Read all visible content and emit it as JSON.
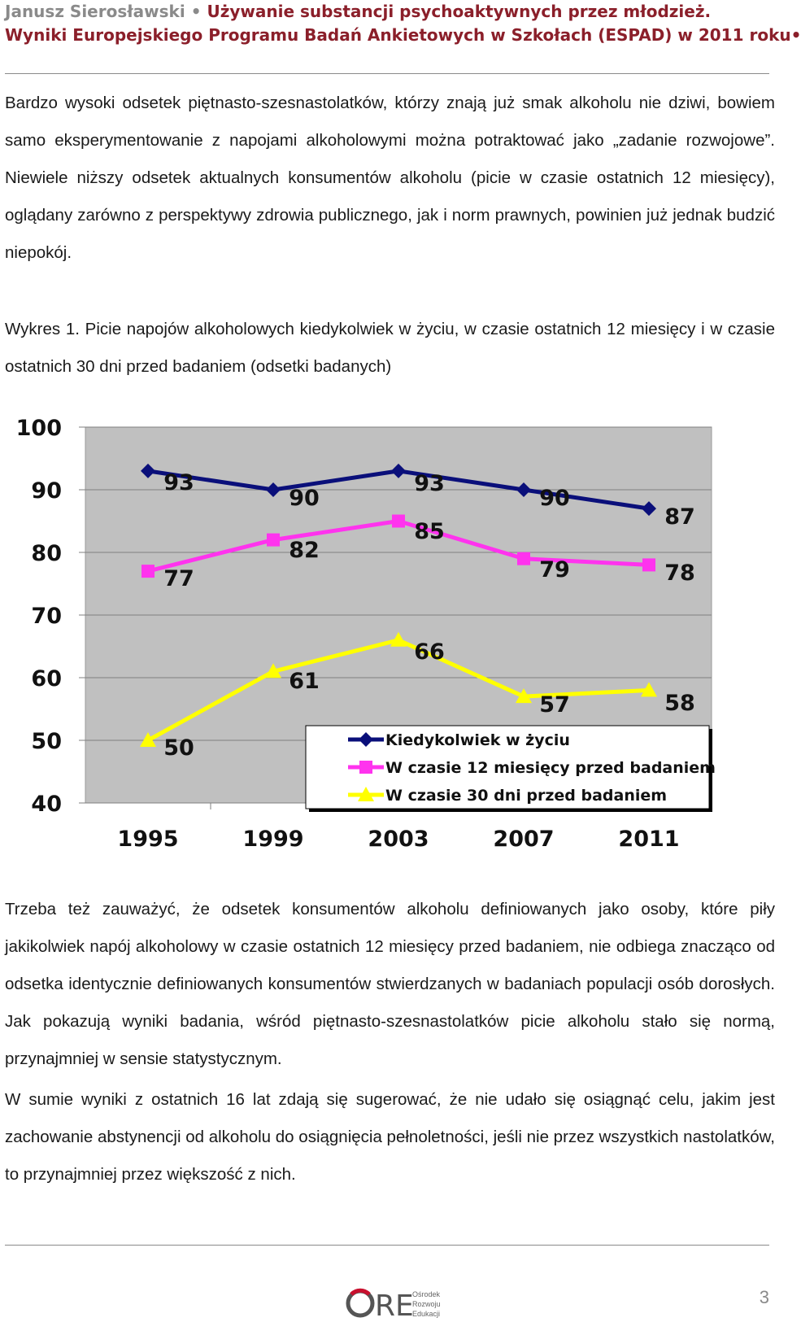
{
  "header": {
    "author": "Janusz Sierosławski",
    "separator": "•",
    "title_part1": "Używanie substancji psychoaktywnych przez młodzież.",
    "title_part2": "Wyniki Europejskiego Programu Badań Ankietowych w Szkołach (ESPAD) w 2011 roku•"
  },
  "paragraphs": [
    "Bardzo wysoki odsetek piętnasto-szesnastolatków, którzy znają już smak alkoholu nie dziwi, bowiem samo eksperymentowanie z napojami alkoholowymi można potraktować jako „zadanie rozwojowe”. Niewiele niższy odsetek aktualnych konsumentów alkoholu (picie w czasie ostatnich 12 miesięcy), oglądany zarówno z perspektywy zdrowia publicznego, jak i norm prawnych, powinien już jednak budzić niepokój.",
    "Trzeba też zauważyć, że odsetek konsumentów alkoholu definiowanych jako osoby, które piły jakikolwiek napój alkoholowy w czasie ostatnich 12 miesięcy przed badaniem, nie odbiega znacząco od odsetka identycznie definiowanych konsumentów stwierdzanych w badaniach populacji osób dorosłych. Jak pokazują wyniki badania, wśród piętnasto-szesnastolatków picie alkoholu stało się normą, przynajmniej w sensie statystycznym.",
    "W sumie wyniki z ostatnich 16 lat zdają się sugerować, że nie udało się osiągnąć celu, jakim jest zachowanie abstynencji od alkoholu do osiągnięcia pełnoletności, jeśli nie przez wszystkich nastolatków, to przynajmniej przez większość z nich."
  ],
  "caption": "Wykres 1. Picie napojów alkoholowych kiedykolwiek w życiu, w czasie ostatnich 12 miesięcy i w czasie ostatnich 30 dni przed badaniem (odsetki badanych)",
  "chart_data": {
    "type": "line",
    "x": [
      "1995",
      "1999",
      "2003",
      "2007",
      "2011"
    ],
    "ylim": [
      40,
      100
    ],
    "yticks": [
      "40",
      "50",
      "60",
      "70",
      "80",
      "90",
      "100"
    ],
    "grid": "horizontal",
    "legend_position": "bottom-right",
    "plot_background": "#c0c0c0",
    "series": [
      {
        "name": "Kiedykolwiek w życiu",
        "values": [
          93,
          90,
          93,
          90,
          87
        ],
        "color": "#0a0f7a",
        "marker": "diamond"
      },
      {
        "name": "W czasie 12 miesięcy przed badaniem",
        "values": [
          77,
          82,
          85,
          79,
          78
        ],
        "color": "#ff33ee",
        "marker": "square"
      },
      {
        "name": "W czasie 30 dni przed badaniem",
        "values": [
          50,
          61,
          66,
          57,
          58
        ],
        "color": "#ffff00",
        "marker": "triangle"
      }
    ]
  },
  "footer": {
    "logo_text": "ORE",
    "logo_sub": [
      "Ośrodek",
      "Rozwoju",
      "Edukacji"
    ],
    "page_number": "3"
  }
}
